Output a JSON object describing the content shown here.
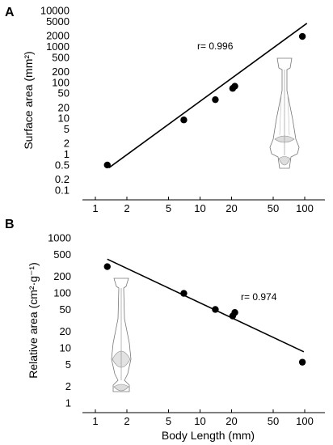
{
  "chart_data": [
    {
      "panel": "A",
      "type": "scatter",
      "x_scale": "log",
      "y_scale": "log",
      "xlim": [
        1,
        100
      ],
      "ylim": [
        0.1,
        10000
      ],
      "x_ticks": [
        1,
        2,
        5,
        10,
        20,
        50,
        100
      ],
      "x_tick_labels": [
        "1",
        "2",
        "5",
        "10",
        "20",
        "50",
        "100"
      ],
      "y_ticks": [
        0.1,
        0.2,
        0.5,
        1,
        2,
        5,
        10,
        20,
        50,
        100,
        200,
        500,
        1000,
        2000,
        5000,
        10000
      ],
      "y_tick_labels": [
        "0.1",
        "0.2",
        "0.5",
        "1",
        "2",
        "5",
        "10",
        "20",
        "50",
        "100",
        "200",
        "500",
        "1000",
        "2000",
        "5000",
        "10000"
      ],
      "xlabel": "",
      "ylabel": "Surface area (mm²)",
      "annotation": "r= 0.996",
      "points": [
        {
          "x": 1.3,
          "y": 0.5
        },
        {
          "x": 7,
          "y": 9
        },
        {
          "x": 14,
          "y": 33
        },
        {
          "x": 20.5,
          "y": 68
        },
        {
          "x": 21.5,
          "y": 78
        },
        {
          "x": 95,
          "y": 1900
        }
      ],
      "fit_line": [
        {
          "x": 1.35,
          "y": 0.42
        },
        {
          "x": 105,
          "y": 4400
        }
      ]
    },
    {
      "panel": "B",
      "type": "scatter",
      "x_scale": "log",
      "y_scale": "log",
      "xlim": [
        1,
        100
      ],
      "ylim": [
        1,
        1000
      ],
      "x_ticks": [
        1,
        2,
        5,
        10,
        20,
        50,
        100
      ],
      "x_tick_labels": [
        "1",
        "2",
        "5",
        "10",
        "20",
        "50",
        "100"
      ],
      "y_ticks": [
        1,
        2,
        5,
        10,
        20,
        50,
        100,
        200,
        500,
        1000
      ],
      "y_tick_labels": [
        "1",
        "2",
        "5",
        "10",
        "20",
        "50",
        "100",
        "200",
        "500",
        "1000"
      ],
      "xlabel": "Body Length (mm)",
      "ylabel": "Relative area (cm²·g⁻¹)",
      "annotation": "r= 0.974",
      "points": [
        {
          "x": 1.3,
          "y": 300
        },
        {
          "x": 7,
          "y": 98
        },
        {
          "x": 14,
          "y": 50
        },
        {
          "x": 20.5,
          "y": 38
        },
        {
          "x": 21.5,
          "y": 44
        },
        {
          "x": 95,
          "y": 5.5
        }
      ],
      "fit_line": [
        {
          "x": 1.3,
          "y": 410
        },
        {
          "x": 98,
          "y": 8.5
        }
      ]
    }
  ]
}
